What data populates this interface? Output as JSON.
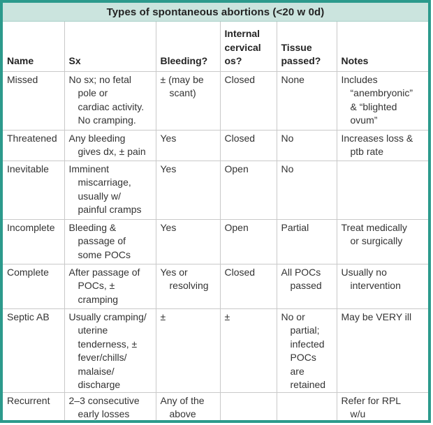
{
  "title": "Types of spontaneous abortions (<20 w 0d)",
  "colors": {
    "frame_border": "#2c9a8c",
    "title_background": "#cbe4de",
    "gridline": "#c9c9c9",
    "text": "#333333"
  },
  "columns": [
    "Name",
    "Sx",
    "Bleeding?",
    "Internal\ncervical\nos?",
    "Tissue\npassed?",
    "Notes"
  ],
  "rows": [
    [
      "Missed",
      "No sx; no fetal\npole or\ncardiac activity.\nNo cramping.",
      "± (may be\nscant)",
      "Closed",
      "None",
      "Includes\n“anembryonic”\n& “blighted\novum”"
    ],
    [
      "Threatened",
      "Any bleeding\ngives dx, ± pain",
      "Yes",
      "Closed",
      "No",
      "Increases loss &\nptb rate"
    ],
    [
      "Inevitable",
      "Imminent\nmiscarriage,\nusually w/\npainful cramps",
      "Yes",
      "Open",
      "No",
      ""
    ],
    [
      "Incomplete",
      "Bleeding &\npassage of\nsome POCs",
      "Yes",
      "Open",
      "Partial",
      "Treat medically\nor surgically"
    ],
    [
      "Complete",
      "After passage of\nPOCs, ±\ncramping",
      "Yes or\nresolving",
      "Closed",
      "All POCs\npassed",
      "Usually no\nintervention"
    ],
    [
      "Septic AB",
      "Usually cramping/\nuterine\ntenderness, ±\nfever/chills/\nmalaise/\ndischarge",
      "±",
      "±",
      "No or\npartial;\ninfected\nPOCs\nare\nretained",
      "May be VERY ill"
    ],
    [
      "Recurrent",
      "2–3 consecutive\nearly losses",
      "Any of the\nabove",
      "",
      "",
      "Refer for RPL\nw/u"
    ]
  ]
}
